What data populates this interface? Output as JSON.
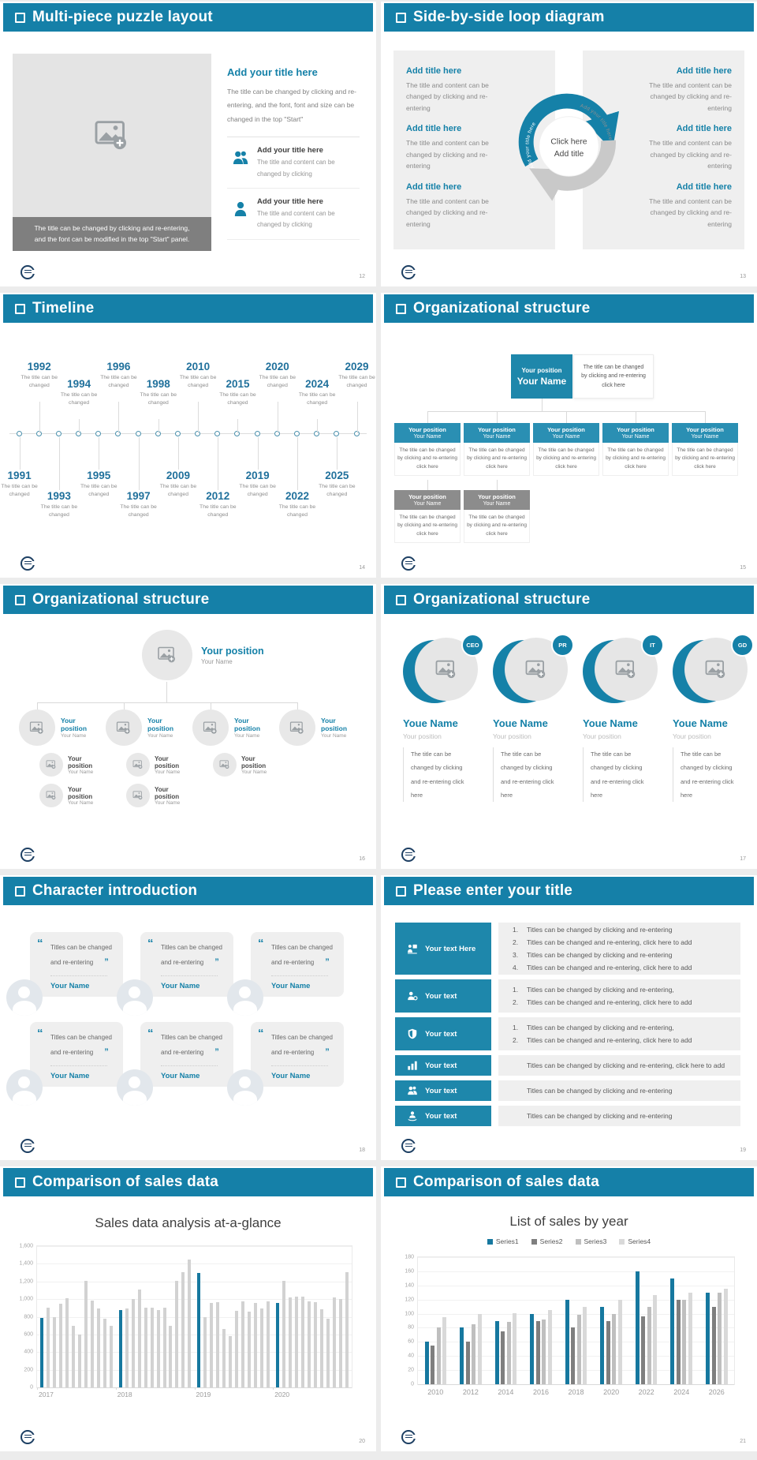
{
  "colors": {
    "accent": "#1580a8",
    "org_box": "#1e87ab",
    "gray_box": "#8c8c8c",
    "panel_gray": "#efefef",
    "highlight_bar": "#16789f",
    "bar_gray": "#d2d2d2"
  },
  "icons": [
    "square-bullet-icon",
    "image-placeholder-icon",
    "people-icon",
    "person-icon",
    "lecturer-icon",
    "person-check-icon",
    "shield-icon",
    "bar-chart-icon",
    "support-icon",
    "quote-icon",
    "avatar-icon",
    "logo-badge-icon"
  ],
  "puzzle": {
    "header": "Multi-piece puzzle layout",
    "page": "12",
    "caption_line1": "The title can be changed by clicking and re-entering,",
    "caption_line2": "and the font can be modified in the top \"Start\" panel.",
    "heading": "Add your title here",
    "body": "The title can be changed by clicking and re-entering, and the font, font and size can be changed in the top \"Start\"",
    "items": [
      {
        "icon": "icon-people",
        "title": "Add your title here",
        "text": "The title and content can be changed by clicking"
      },
      {
        "icon": "icon-person",
        "title": "Add your title here",
        "text": "The title and content can be changed by clicking"
      }
    ]
  },
  "loop": {
    "header": "Side-by-side loop diagram",
    "page": "13",
    "left_items": [
      {
        "title": "Add title here",
        "text": "The title and content can be changed by clicking and re-entering"
      },
      {
        "title": "Add title here",
        "text": "The title and content can be changed by clicking and re-entering"
      },
      {
        "title": "Add title here",
        "text": "The title and content can be changed by clicking and re-entering"
      }
    ],
    "right_items": [
      {
        "title": "Add title here",
        "text": "The title and content can be changed by clicking and re-entering"
      },
      {
        "title": "Add title here",
        "text": "The title and content can be changed by clicking and re-entering"
      },
      {
        "title": "Add title here",
        "text": "The title and content can be changed by clicking and re-entering"
      }
    ],
    "center_line1": "Click here",
    "center_line2": "Add title",
    "arc_label_left": "Add your title here",
    "arc_label_right": "Add your title here"
  },
  "timeline": {
    "header": "Timeline",
    "page": "14",
    "entries": [
      {
        "year": "1991",
        "cls": "dn-a",
        "text": "The title can be changed"
      },
      {
        "year": "1992",
        "cls": "up-a",
        "text": "The title can be changed"
      },
      {
        "year": "1993",
        "cls": "dn-b",
        "text": "The title can be changed"
      },
      {
        "year": "1994",
        "cls": "up-b",
        "text": "The title can be changed"
      },
      {
        "year": "1995",
        "cls": "dn-a",
        "text": "The title can be changed"
      },
      {
        "year": "1996",
        "cls": "up-a",
        "text": "The title can be changed"
      },
      {
        "year": "1997",
        "cls": "dn-b",
        "text": "The title can be changed"
      },
      {
        "year": "1998",
        "cls": "up-b",
        "text": "The title can be changed"
      },
      {
        "year": "2009",
        "cls": "dn-a",
        "text": "The title can be changed"
      },
      {
        "year": "2010",
        "cls": "up-a",
        "text": "The title can be changed"
      },
      {
        "year": "2012",
        "cls": "dn-b",
        "text": "The title can be changed"
      },
      {
        "year": "2015",
        "cls": "up-b",
        "text": "The title can be changed"
      },
      {
        "year": "2019",
        "cls": "dn-a",
        "text": "The title can be changed"
      },
      {
        "year": "2020",
        "cls": "up-a",
        "text": "The title can be changed"
      },
      {
        "year": "2022",
        "cls": "dn-b",
        "text": "The title can be changed"
      },
      {
        "year": "2024",
        "cls": "up-b",
        "text": "The title can be changed"
      },
      {
        "year": "2025",
        "cls": "dn-a",
        "text": "The title can be changed"
      },
      {
        "year": "2029",
        "cls": "up-a",
        "text": "The title can be changed"
      }
    ]
  },
  "org_chart": {
    "header": "Organizational structure",
    "page": "15",
    "root_position": "Your position",
    "root_name": "Your Name",
    "root_note": "The title can be changed by clicking and re-entering click here",
    "children": [
      {
        "position": "Your position",
        "name": "Your Name",
        "text": "The title can be changed by clicking and re-entering click here"
      },
      {
        "position": "Your position",
        "name": "Your Name",
        "text": "The title can be changed by clicking and re-entering click here"
      },
      {
        "position": "Your position",
        "name": "Your Name",
        "text": "The title can be changed by clicking and re-entering click here"
      },
      {
        "position": "Your position",
        "name": "Your Name",
        "text": "The title can be changed by clicking and re-entering click here"
      },
      {
        "position": "Your position",
        "name": "Your Name",
        "text": "The title can be changed by clicking and re-entering click here"
      }
    ],
    "assistants": [
      {
        "position": "Your position",
        "name": "Your Name",
        "text": "The title can be changed by clicking and re-entering click here"
      },
      {
        "position": "Your position",
        "name": "Your Name",
        "text": "The title can be changed by clicking and re-entering click here"
      }
    ]
  },
  "org_photos": {
    "header": "Organizational structure",
    "page": "16",
    "root_position": "Your position",
    "root_name": "Your Name",
    "branches": [
      {
        "position": "Your position",
        "name": "Your Name",
        "subs": [
          {
            "position": "Your position",
            "name": "Your Name"
          },
          {
            "position": "Your position",
            "name": "Your Name"
          }
        ]
      },
      {
        "position": "Your position",
        "name": "Your Name",
        "subs": [
          {
            "position": "Your position",
            "name": "Your Name"
          },
          {
            "position": "Your position",
            "name": "Your Name"
          }
        ]
      },
      {
        "position": "Your position",
        "name": "Your Name",
        "subs": [
          {
            "position": "Your position",
            "name": "Your Name"
          }
        ]
      },
      {
        "position": "Your position",
        "name": "Your Name",
        "subs": []
      }
    ]
  },
  "org_team": {
    "header": "Organizational structure",
    "page": "17",
    "members": [
      {
        "badge": "CEO",
        "name": "Youe Name",
        "position": "Your position",
        "text": "The title can be changed by clicking and re-entering click here"
      },
      {
        "badge": "PR",
        "name": "Youe Name",
        "position": "Your position",
        "text": "The title can be changed by clicking and re-entering click here"
      },
      {
        "badge": "IT",
        "name": "Youe Name",
        "position": "Your position",
        "text": "The title can be changed by clicking and re-entering click here"
      },
      {
        "badge": "GD",
        "name": "Youe Name",
        "position": "Your position",
        "text": "The title can be changed by clicking and re-entering click here"
      }
    ]
  },
  "characters": {
    "header": "Character introduction",
    "page": "18",
    "cards": [
      {
        "quote": "Titles can be changed and re-entering",
        "name": "Your Name"
      },
      {
        "quote": "Titles can be changed and re-entering",
        "name": "Your Name"
      },
      {
        "quote": "Titles can be changed and re-entering",
        "name": "Your Name"
      },
      {
        "quote": "Titles can be changed and re-entering",
        "name": "Your Name"
      },
      {
        "quote": "Titles can be changed and re-entering",
        "name": "Your Name"
      },
      {
        "quote": "Titles can be changed and re-entering",
        "name": "Your Name"
      }
    ]
  },
  "agenda": {
    "header": "Please enter your title",
    "page": "19",
    "rows": [
      {
        "icon": "icon-lecturer",
        "label": "Your text Here",
        "size": "lg",
        "lines": [
          {
            "num": "1.",
            "text": "Titles can be changed by clicking and re-entering"
          },
          {
            "num": "2.",
            "text": "Titles can be changed and re-entering, click here to add"
          },
          {
            "num": "3.",
            "text": "Titles can be changed by clicking and re-entering"
          },
          {
            "num": "4.",
            "text": "Titles can be changed and re-entering, click here to add"
          }
        ]
      },
      {
        "icon": "icon-person-check",
        "label": "Your text",
        "size": "md",
        "lines": [
          {
            "num": "1.",
            "text": "Titles can be changed by clicking and re-entering,"
          },
          {
            "num": "2.",
            "text": "Titles can be changed and re-entering, click here to add"
          }
        ]
      },
      {
        "icon": "icon-shield",
        "label": "Your text",
        "size": "md",
        "lines": [
          {
            "num": "1.",
            "text": "Titles can be changed by clicking and re-entering,"
          },
          {
            "num": "2.",
            "text": "Titles can be changed and re-entering, click here to add"
          }
        ]
      },
      {
        "icon": "icon-bars",
        "label": "Your text",
        "size": "sm",
        "lines": [
          {
            "num": "",
            "text": "Titles can be changed by clicking and re-entering, click here to add"
          }
        ]
      },
      {
        "icon": "icon-people",
        "label": "Your text",
        "size": "sm",
        "lines": [
          {
            "num": "",
            "text": "Titles can be changed by clicking and re-entering"
          }
        ]
      },
      {
        "icon": "icon-support",
        "label": "Your text",
        "size": "sm",
        "lines": [
          {
            "num": "",
            "text": "Titles can be changed by clicking and re-entering"
          }
        ]
      }
    ]
  },
  "sales1": {
    "header": "Comparison of sales data",
    "page": "20"
  },
  "sales2": {
    "header": "Comparison of sales data",
    "page": "21"
  },
  "chart_data": [
    {
      "type": "bar",
      "title": "Sales data analysis at-a-glance",
      "xlabel": "",
      "ylabel": "",
      "ylim": [
        0,
        1600
      ],
      "ytick_step": 200,
      "grid": true,
      "highlight_color": "#16789f",
      "bar_color": "#d2d2d2",
      "note": "first bar of each year group is highlighted teal",
      "categories": [
        "2017",
        "2018",
        "2019",
        "2020"
      ],
      "groups": [
        {
          "year": "2017",
          "values": [
            790,
            900,
            800,
            945,
            1010,
            700,
            600,
            1210,
            985,
            895,
            775,
            700
          ]
        },
        {
          "year": "2018",
          "values": [
            880,
            890,
            1000,
            1105,
            900,
            900,
            880,
            900,
            700,
            1210,
            1305,
            1450
          ]
        },
        {
          "year": "2019",
          "values": [
            1300,
            800,
            955,
            965,
            660,
            585,
            865,
            975,
            860,
            955,
            890,
            975
          ]
        },
        {
          "year": "2020",
          "values": [
            955,
            1210,
            1020,
            1030,
            1025,
            975,
            965,
            885,
            775,
            1015,
            1000,
            1305
          ]
        }
      ]
    },
    {
      "type": "bar",
      "title": "List of sales by year",
      "xlabel": "",
      "ylabel": "",
      "ylim": [
        0,
        180
      ],
      "ytick_step": 20,
      "grid": true,
      "legend": [
        "Series1",
        "Series2",
        "Series3",
        "Series4"
      ],
      "legend_position": "top",
      "series_colors": [
        "#16789f",
        "#7f7f7f",
        "#bfbfbf",
        "#d9d9d9"
      ],
      "categories": [
        "2010",
        "2012",
        "2014",
        "2016",
        "2018",
        "2020",
        "2022",
        "2024",
        "2026"
      ],
      "series": [
        {
          "name": "Series1",
          "values": [
            60,
            80,
            90,
            100,
            120,
            110,
            160,
            150,
            130
          ]
        },
        {
          "name": "Series2",
          "values": [
            55,
            60,
            75,
            90,
            80,
            90,
            96,
            120,
            110
          ]
        },
        {
          "name": "Series3",
          "values": [
            80,
            85,
            88,
            92,
            98,
            100,
            110,
            120,
            130
          ]
        },
        {
          "name": "Series4",
          "values": [
            95,
            99,
            101,
            105,
            110,
            120,
            126,
            130,
            135
          ]
        }
      ]
    }
  ]
}
